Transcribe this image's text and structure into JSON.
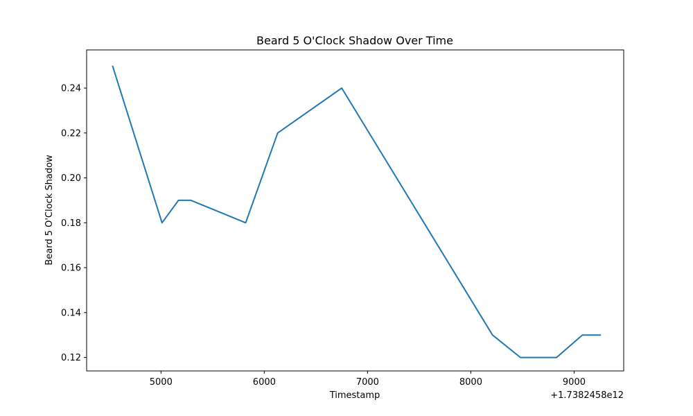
{
  "chart_data": {
    "type": "line",
    "title": "Beard 5 O'Clock Shadow Over Time",
    "xlabel": "Timestamp",
    "ylabel": "Beard 5 O'Clock Shadow",
    "x_offset_label": "+1.7382458e12",
    "xlim": [
      4280,
      9480
    ],
    "ylim": [
      0.114,
      0.257
    ],
    "x_ticks": [
      5000,
      6000,
      7000,
      8000,
      9000
    ],
    "y_ticks": [
      0.12,
      0.14,
      0.16,
      0.18,
      0.2,
      0.22,
      0.24
    ],
    "y_tick_labels": [
      "0.12",
      "0.14",
      "0.16",
      "0.18",
      "0.20",
      "0.22",
      "0.24"
    ],
    "grid": false,
    "series_color": "#1f77b4",
    "series": [
      {
        "x": [
          4530,
          5010,
          5170,
          5290,
          5820,
          6130,
          6750,
          8210,
          8480,
          8830,
          9080,
          9260
        ],
        "values": [
          0.25,
          0.18,
          0.19,
          0.19,
          0.18,
          0.22,
          0.24,
          0.13,
          0.12,
          0.12,
          0.13,
          0.13
        ]
      }
    ]
  }
}
